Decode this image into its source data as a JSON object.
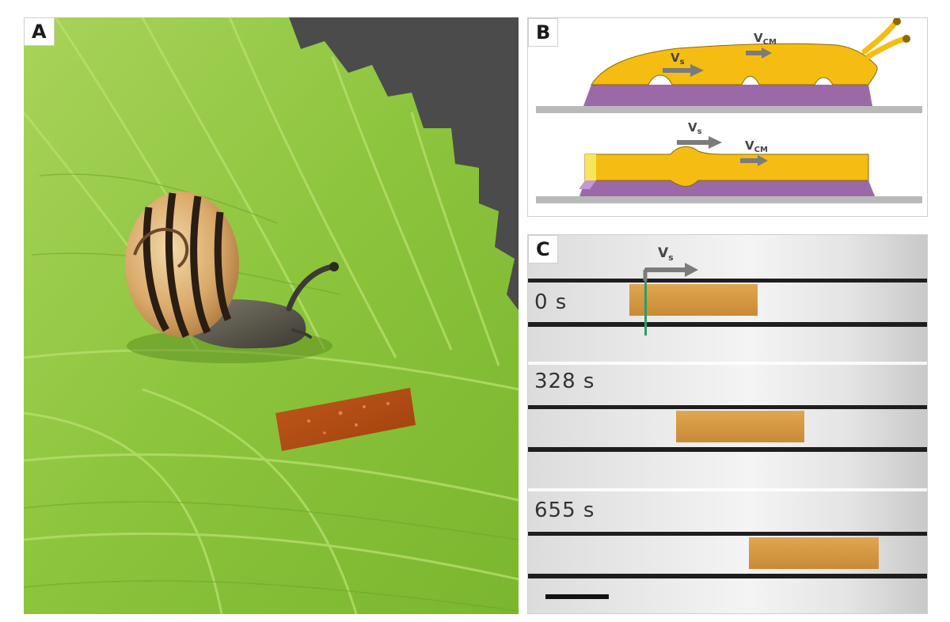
{
  "panels": {
    "a": {
      "label": "A"
    },
    "b": {
      "label": "B",
      "top_diagram": {
        "vs_main": "V",
        "vs_sub": "s",
        "vcm_main": "V",
        "vcm_sub": "CM"
      },
      "bottom_diagram": {
        "vs_main": "V",
        "vs_sub": "s",
        "vcm_main": "V",
        "vcm_sub": "CM"
      }
    },
    "c": {
      "label": "C",
      "velocity_main": "V",
      "velocity_sub": "s",
      "frames": [
        {
          "time": "0 s"
        },
        {
          "time": "328 s"
        },
        {
          "time": "655 s"
        }
      ]
    }
  },
  "colors": {
    "leaf_green": "#8cc43c",
    "snail_body_yellow": "#f5bd12",
    "mucus_purple": "#9b69a8",
    "substrate_gray": "#b9b9b9",
    "arrow_gray": "#7b7b7b",
    "robot_copper": "#b2470f",
    "robot_tan": "#d59b48",
    "marker_green": "#2a9e6a"
  }
}
